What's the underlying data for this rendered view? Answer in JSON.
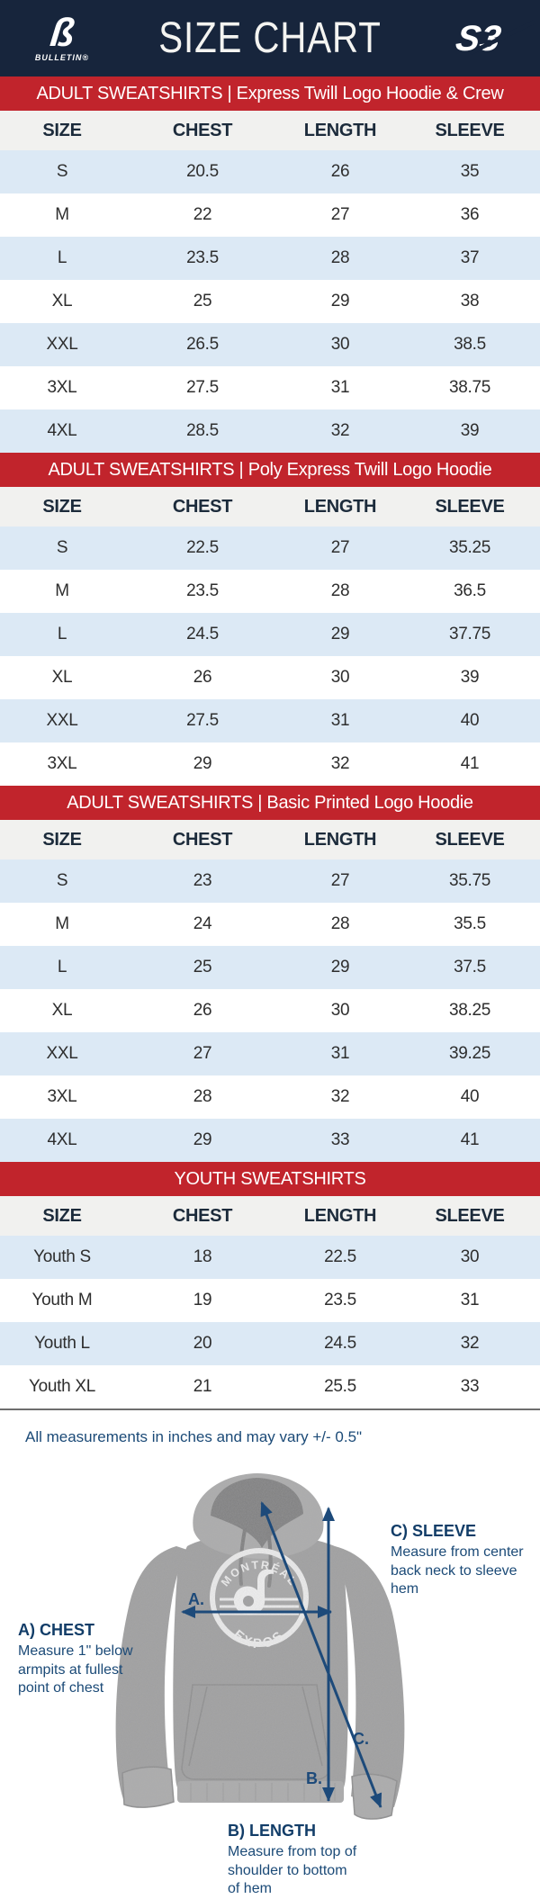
{
  "header": {
    "title": "SIZE CHART",
    "left_logo_caption": "BULLETIN®",
    "right_logo": "S3"
  },
  "icons": {
    "bulletin_glyph": "ß"
  },
  "columns": [
    "SIZE",
    "CHEST",
    "LENGTH",
    "SLEEVE"
  ],
  "tables": [
    {
      "banner": "ADULT SWEATSHIRTS | Express Twill Logo Hoodie & Crew",
      "rows": [
        [
          "S",
          "20.5",
          "26",
          "35"
        ],
        [
          "M",
          "22",
          "27",
          "36"
        ],
        [
          "L",
          "23.5",
          "28",
          "37"
        ],
        [
          "XL",
          "25",
          "29",
          "38"
        ],
        [
          "XXL",
          "26.5",
          "30",
          "38.5"
        ],
        [
          "3XL",
          "27.5",
          "31",
          "38.75"
        ],
        [
          "4XL",
          "28.5",
          "32",
          "39"
        ]
      ]
    },
    {
      "banner": "ADULT SWEATSHIRTS | Poly Express Twill Logo Hoodie",
      "rows": [
        [
          "S",
          "22.5",
          "27",
          "35.25"
        ],
        [
          "M",
          "23.5",
          "28",
          "36.5"
        ],
        [
          "L",
          "24.5",
          "29",
          "37.75"
        ],
        [
          "XL",
          "26",
          "30",
          "39"
        ],
        [
          "XXL",
          "27.5",
          "31",
          "40"
        ],
        [
          "3XL",
          "29",
          "32",
          "41"
        ]
      ]
    },
    {
      "banner": "ADULT SWEATSHIRTS | Basic Printed Logo Hoodie",
      "rows": [
        [
          "S",
          "23",
          "27",
          "35.75"
        ],
        [
          "M",
          "24",
          "28",
          "35.5"
        ],
        [
          "L",
          "25",
          "29",
          "37.5"
        ],
        [
          "XL",
          "26",
          "30",
          "38.25"
        ],
        [
          "XXL",
          "27",
          "31",
          "39.25"
        ],
        [
          "3XL",
          "28",
          "32",
          "40"
        ],
        [
          "4XL",
          "29",
          "33",
          "41"
        ]
      ]
    },
    {
      "banner": "YOUTH SWEATSHIRTS",
      "rows": [
        [
          "Youth S",
          "18",
          "22.5",
          "30"
        ],
        [
          "Youth M",
          "19",
          "23.5",
          "31"
        ],
        [
          "Youth L",
          "20",
          "24.5",
          "32"
        ],
        [
          "Youth XL",
          "21",
          "25.5",
          "33"
        ]
      ]
    }
  ],
  "note": "All measurements in inches and may vary +/- 0.5\"",
  "figure": {
    "logo_top": "MONTRÉAL",
    "logo_bottom": "EXPOS",
    "annotations": [
      {
        "marker": "A.",
        "title": "A) CHEST",
        "body": "Measure 1\" below armpits at fullest point of chest"
      },
      {
        "marker": "B.",
        "title": "B) LENGTH",
        "body": "Measure from top of shoulder to bottom of hem"
      },
      {
        "marker": "C.",
        "title": "C) SLEEVE",
        "body": "Measure from center back neck to sleeve hem"
      }
    ]
  },
  "colors": {
    "navy": "#17253c",
    "red": "#c1242c",
    "row_blue": "#dce9f5",
    "head_bg": "#f1f1ef",
    "ink": "#2e2e2e",
    "navy_text": "#1b4a77",
    "arrow": "#1d4a7a",
    "hoodie_grey": "#9f9f9f",
    "hoodie_light": "#ababab",
    "hood_inner": "#7d7d7d"
  }
}
